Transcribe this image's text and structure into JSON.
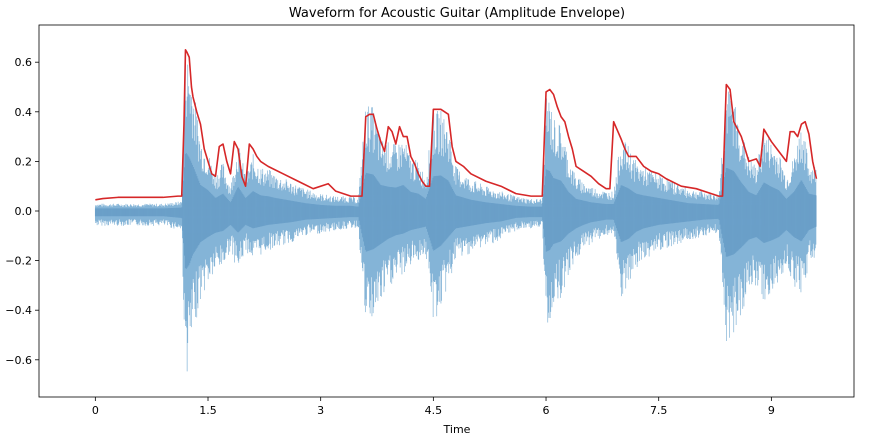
{
  "chart_data": {
    "type": "line",
    "title": "Waveform for Acoustic Guitar (Amplitude Envelope)",
    "xlabel": "Time",
    "ylabel": "",
    "xlim": [
      -0.75,
      10.1
    ],
    "ylim": [
      -0.75,
      0.75
    ],
    "x_ticks": [
      0,
      1.5,
      3,
      4.5,
      6,
      7.5,
      9
    ],
    "x_tick_labels": [
      "0",
      "1.5",
      "3",
      "4.5",
      "6",
      "7.5",
      "9"
    ],
    "y_ticks": [
      -0.6,
      -0.4,
      -0.2,
      0.0,
      0.2,
      0.4,
      0.6
    ],
    "y_tick_labels": [
      "−0.6",
      "−0.4",
      "−0.2",
      "0.0",
      "0.2",
      "0.4",
      "0.6"
    ],
    "grid": false,
    "colors": {
      "waveform": "#5b9bc9",
      "envelope": "#d62728"
    },
    "series": [
      {
        "kind": "waveform",
        "x": [
          0,
          0.3,
          0.6,
          0.9,
          1.15,
          1.2,
          1.25,
          1.3,
          1.4,
          1.5,
          1.6,
          1.7,
          1.8,
          1.9,
          2.0,
          2.1,
          2.2,
          2.3,
          2.4,
          2.6,
          2.8,
          3.0,
          3.2,
          3.4,
          3.5,
          3.6,
          3.7,
          3.8,
          3.9,
          4.0,
          4.1,
          4.2,
          4.3,
          4.4,
          4.5,
          4.6,
          4.7,
          4.8,
          5.0,
          5.2,
          5.4,
          5.5,
          5.6,
          5.8,
          5.95,
          6.0,
          6.05,
          6.1,
          6.2,
          6.3,
          6.4,
          6.5,
          6.6,
          6.8,
          6.9,
          7.0,
          7.1,
          7.2,
          7.3,
          7.5,
          7.7,
          7.9,
          8.1,
          8.3,
          8.4,
          8.5,
          8.6,
          8.7,
          8.8,
          8.9,
          9.0,
          9.1,
          9.2,
          9.3,
          9.4,
          9.5,
          9.6
        ],
        "pos": [
          0.03,
          0.03,
          0.03,
          0.03,
          0.04,
          0.68,
          0.62,
          0.52,
          0.3,
          0.24,
          0.15,
          0.2,
          0.1,
          0.28,
          0.15,
          0.23,
          0.18,
          0.17,
          0.15,
          0.12,
          0.09,
          0.07,
          0.06,
          0.06,
          0.05,
          0.44,
          0.42,
          0.3,
          0.28,
          0.27,
          0.3,
          0.22,
          0.2,
          0.14,
          0.4,
          0.41,
          0.35,
          0.18,
          0.13,
          0.1,
          0.08,
          0.07,
          0.06,
          0.05,
          0.05,
          0.48,
          0.46,
          0.38,
          0.35,
          0.22,
          0.14,
          0.12,
          0.1,
          0.08,
          0.08,
          0.3,
          0.26,
          0.2,
          0.18,
          0.15,
          0.12,
          0.09,
          0.08,
          0.07,
          0.5,
          0.46,
          0.33,
          0.22,
          0.18,
          0.33,
          0.28,
          0.24,
          0.14,
          0.22,
          0.36,
          0.2,
          0.18
        ],
        "neg": [
          -0.06,
          -0.06,
          -0.06,
          -0.06,
          -0.08,
          -0.68,
          -0.62,
          -0.5,
          -0.36,
          -0.3,
          -0.25,
          -0.23,
          -0.16,
          -0.25,
          -0.16,
          -0.2,
          -0.18,
          -0.16,
          -0.15,
          -0.13,
          -0.1,
          -0.09,
          -0.08,
          -0.07,
          -0.07,
          -0.47,
          -0.44,
          -0.38,
          -0.32,
          -0.28,
          -0.26,
          -0.22,
          -0.2,
          -0.18,
          -0.46,
          -0.4,
          -0.3,
          -0.2,
          -0.17,
          -0.14,
          -0.12,
          -0.1,
          -0.08,
          -0.07,
          -0.07,
          -0.47,
          -0.45,
          -0.38,
          -0.35,
          -0.26,
          -0.2,
          -0.16,
          -0.13,
          -0.1,
          -0.1,
          -0.36,
          -0.32,
          -0.24,
          -0.2,
          -0.16,
          -0.14,
          -0.12,
          -0.1,
          -0.09,
          -0.53,
          -0.5,
          -0.42,
          -0.33,
          -0.3,
          -0.37,
          -0.34,
          -0.3,
          -0.22,
          -0.3,
          -0.35,
          -0.22,
          -0.18
        ]
      },
      {
        "kind": "envelope",
        "x": [
          0,
          0.1,
          0.3,
          0.6,
          0.9,
          1.1,
          1.15,
          1.18,
          1.2,
          1.22,
          1.25,
          1.28,
          1.3,
          1.35,
          1.4,
          1.45,
          1.5,
          1.55,
          1.6,
          1.65,
          1.7,
          1.75,
          1.8,
          1.85,
          1.9,
          1.95,
          2.0,
          2.05,
          2.1,
          2.15,
          2.2,
          2.3,
          2.5,
          2.7,
          2.9,
          3.1,
          3.2,
          3.3,
          3.4,
          3.5,
          3.55,
          3.6,
          3.65,
          3.7,
          3.75,
          3.8,
          3.85,
          3.9,
          3.95,
          4.0,
          4.05,
          4.1,
          4.15,
          4.2,
          4.25,
          4.3,
          4.35,
          4.4,
          4.45,
          4.5,
          4.6,
          4.7,
          4.75,
          4.8,
          4.9,
          5.0,
          5.2,
          5.4,
          5.6,
          5.8,
          5.95,
          6.0,
          6.05,
          6.1,
          6.15,
          6.2,
          6.25,
          6.3,
          6.35,
          6.4,
          6.5,
          6.6,
          6.7,
          6.8,
          6.85,
          6.9,
          7.0,
          7.05,
          7.1,
          7.2,
          7.3,
          7.4,
          7.5,
          7.6,
          7.8,
          8.0,
          8.2,
          8.3,
          8.35,
          8.4,
          8.45,
          8.5,
          8.55,
          8.6,
          8.7,
          8.8,
          8.85,
          8.9,
          9.0,
          9.1,
          9.2,
          9.25,
          9.3,
          9.35,
          9.4,
          9.45,
          9.5,
          9.55,
          9.6
        ],
        "y": [
          0.045,
          0.05,
          0.055,
          0.055,
          0.055,
          0.06,
          0.06,
          0.35,
          0.65,
          0.64,
          0.62,
          0.5,
          0.46,
          0.4,
          0.35,
          0.25,
          0.2,
          0.15,
          0.14,
          0.26,
          0.27,
          0.2,
          0.15,
          0.28,
          0.25,
          0.14,
          0.1,
          0.27,
          0.25,
          0.22,
          0.2,
          0.18,
          0.15,
          0.12,
          0.09,
          0.11,
          0.08,
          0.07,
          0.06,
          0.06,
          0.06,
          0.38,
          0.39,
          0.39,
          0.33,
          0.28,
          0.24,
          0.34,
          0.32,
          0.27,
          0.34,
          0.3,
          0.3,
          0.22,
          0.19,
          0.15,
          0.12,
          0.1,
          0.1,
          0.41,
          0.41,
          0.39,
          0.26,
          0.2,
          0.18,
          0.15,
          0.12,
          0.1,
          0.07,
          0.06,
          0.06,
          0.48,
          0.49,
          0.47,
          0.42,
          0.38,
          0.36,
          0.3,
          0.25,
          0.18,
          0.16,
          0.14,
          0.11,
          0.09,
          0.09,
          0.36,
          0.29,
          0.25,
          0.22,
          0.22,
          0.18,
          0.16,
          0.15,
          0.13,
          0.1,
          0.09,
          0.07,
          0.06,
          0.06,
          0.51,
          0.49,
          0.36,
          0.33,
          0.3,
          0.2,
          0.21,
          0.18,
          0.33,
          0.28,
          0.24,
          0.2,
          0.32,
          0.32,
          0.3,
          0.35,
          0.36,
          0.31,
          0.2,
          0.13
        ]
      }
    ]
  }
}
